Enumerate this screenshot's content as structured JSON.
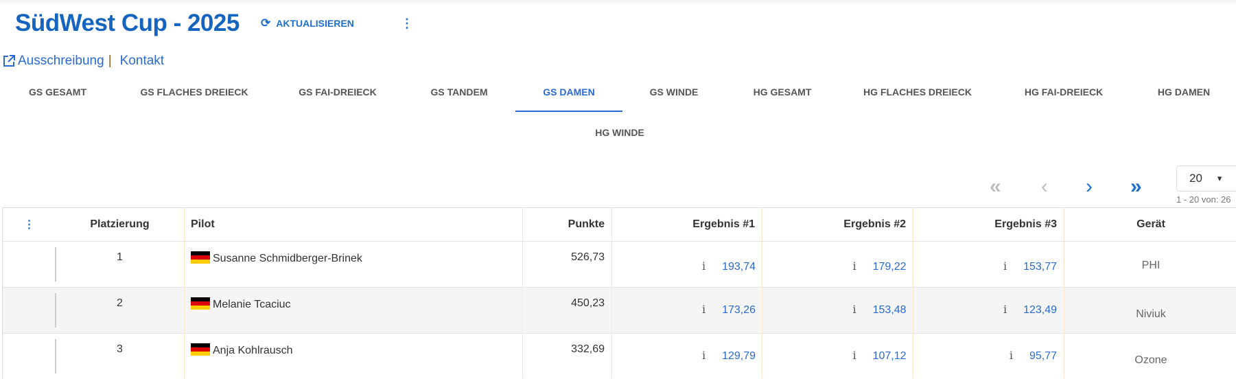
{
  "header": {
    "title": "SüdWest Cup - 2025",
    "refresh_label": "AKTUALISIEREN",
    "menu_icon": "more-vert-icon"
  },
  "links": {
    "ausschreibung": "Ausschreibung",
    "separator": "|",
    "kontakt": "Kontakt"
  },
  "tabs": [
    {
      "label": "GS GESAMT"
    },
    {
      "label": "GS FLACHES DREIECK"
    },
    {
      "label": "GS FAI-DREIECK"
    },
    {
      "label": "GS TANDEM"
    },
    {
      "label": "GS DAMEN",
      "active": true
    },
    {
      "label": "GS WINDE"
    },
    {
      "label": "HG GESAMT"
    },
    {
      "label": "HG FLACHES DREIECK"
    },
    {
      "label": "HG FAI-DREIECK"
    },
    {
      "label": "HG DAMEN"
    },
    {
      "label": "HG WINDE"
    }
  ],
  "pagination": {
    "page_size": "20",
    "info": "1 - 20 von: 26"
  },
  "table": {
    "columns": [
      "Platzierung",
      "Pilot",
      "Punkte",
      "Ergebnis #1",
      "Ergebnis #2",
      "Ergebnis #3",
      "Gerät"
    ],
    "rows": [
      {
        "rank": "1",
        "pilot": "Susanne Schmidberger-Brinek",
        "points": "526,73",
        "r1": "193,74",
        "r2": "179,22",
        "r3": "153,77",
        "device": "PHI"
      },
      {
        "rank": "2",
        "pilot": "Melanie Tcaciuc",
        "points": "450,23",
        "r1": "173,26",
        "r2": "153,48",
        "r3": "123,49",
        "device": "Niviuk"
      },
      {
        "rank": "3",
        "pilot": "Anja Kohlrausch",
        "points": "332,69",
        "r1": "129,79",
        "r2": "107,12",
        "r3": "95,77",
        "device": "Ozone"
      }
    ]
  },
  "colors": {
    "accent": "#1e6fd0",
    "title": "#1565c0",
    "disabled": "#bdbdbd",
    "row_alt": "#f5f5f5"
  }
}
